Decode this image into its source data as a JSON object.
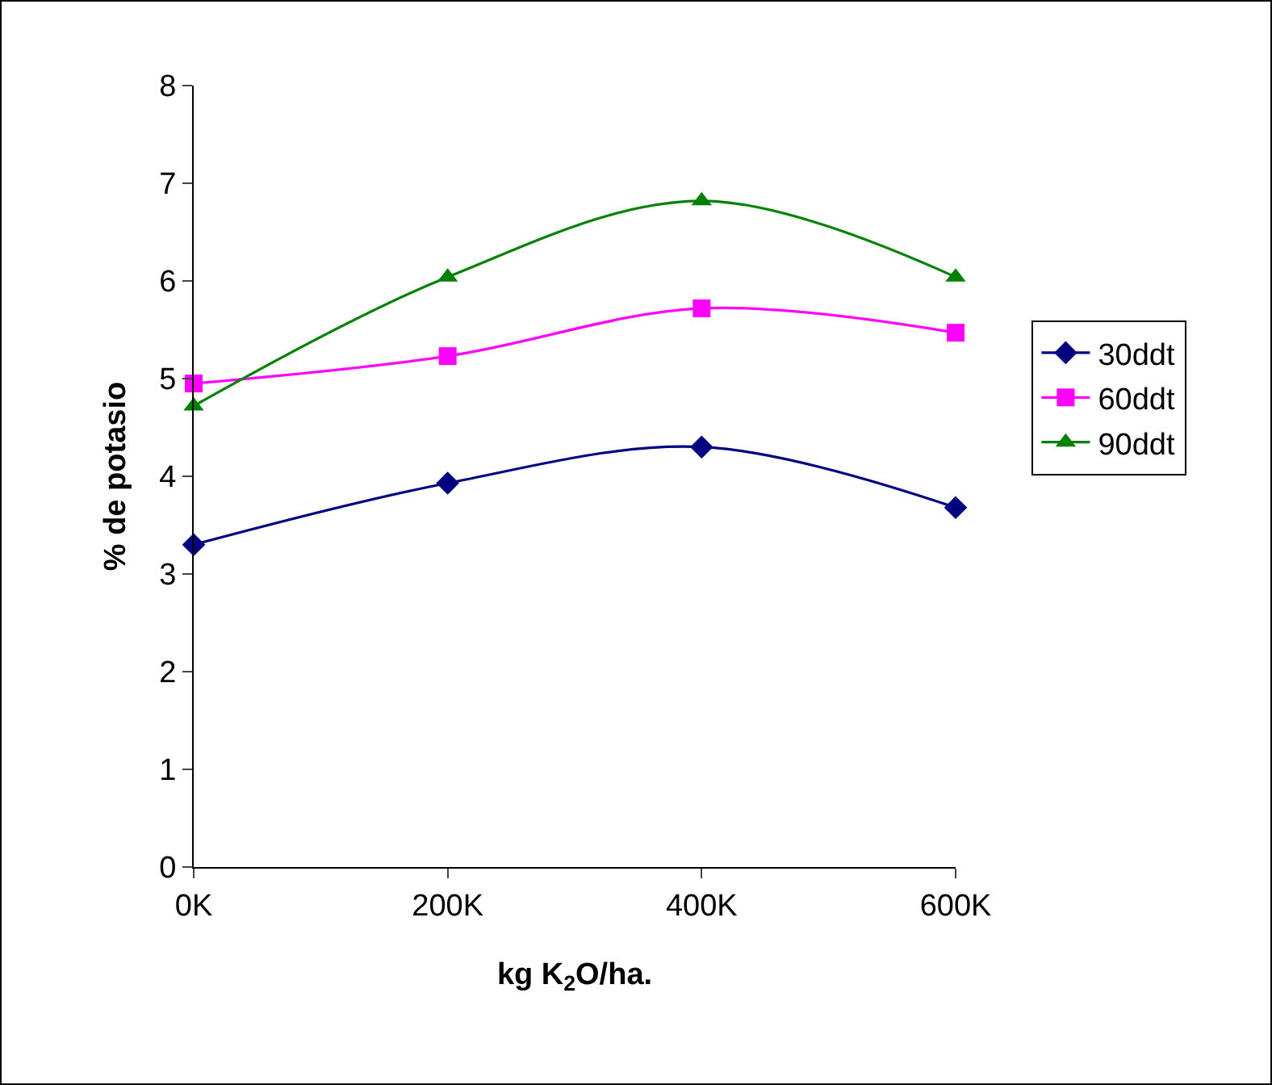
{
  "chart_data": {
    "type": "line",
    "xlabel": "kg K$_{2}$O/ha.",
    "ylabel": "% de potasio",
    "categories": [
      "0K",
      "200K",
      "400K",
      "600K"
    ],
    "series": [
      {
        "name": "30ddt",
        "color": "#000080",
        "marker": "diamond",
        "values": [
          3.3,
          3.93,
          4.3,
          3.68
        ]
      },
      {
        "name": "60ddt",
        "color": "#ff00ff",
        "marker": "square",
        "values": [
          4.95,
          5.23,
          5.72,
          5.47
        ]
      },
      {
        "name": "90ddt",
        "color": "#008000",
        "marker": "triangle",
        "values": [
          4.72,
          6.04,
          6.82,
          6.04
        ]
      }
    ],
    "ylim": [
      0,
      8
    ],
    "yticks": [
      0,
      1,
      2,
      3,
      4,
      5,
      6,
      7,
      8
    ],
    "grid": false,
    "legend": "right"
  }
}
